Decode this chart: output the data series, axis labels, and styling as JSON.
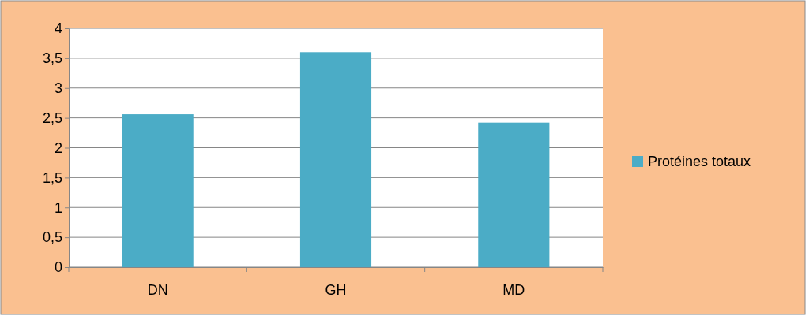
{
  "chart_data": {
    "type": "bar",
    "categories": [
      "DN",
      "GH",
      "MD"
    ],
    "series": [
      {
        "name": "Protéines totaux",
        "color": "#4bacc6",
        "values": [
          2.56,
          3.6,
          2.42
        ]
      }
    ],
    "ylim": [
      0,
      4
    ],
    "yticks": [
      0,
      {
        "value": 0.5,
        "label": "0,5"
      },
      1,
      {
        "value": 1.5,
        "label": "1,5"
      },
      2,
      {
        "value": 2.5,
        "label": "2,5"
      },
      3,
      {
        "value": 3.5,
        "label": "3,5"
      },
      4
    ],
    "grid": "y",
    "legend": "right"
  }
}
